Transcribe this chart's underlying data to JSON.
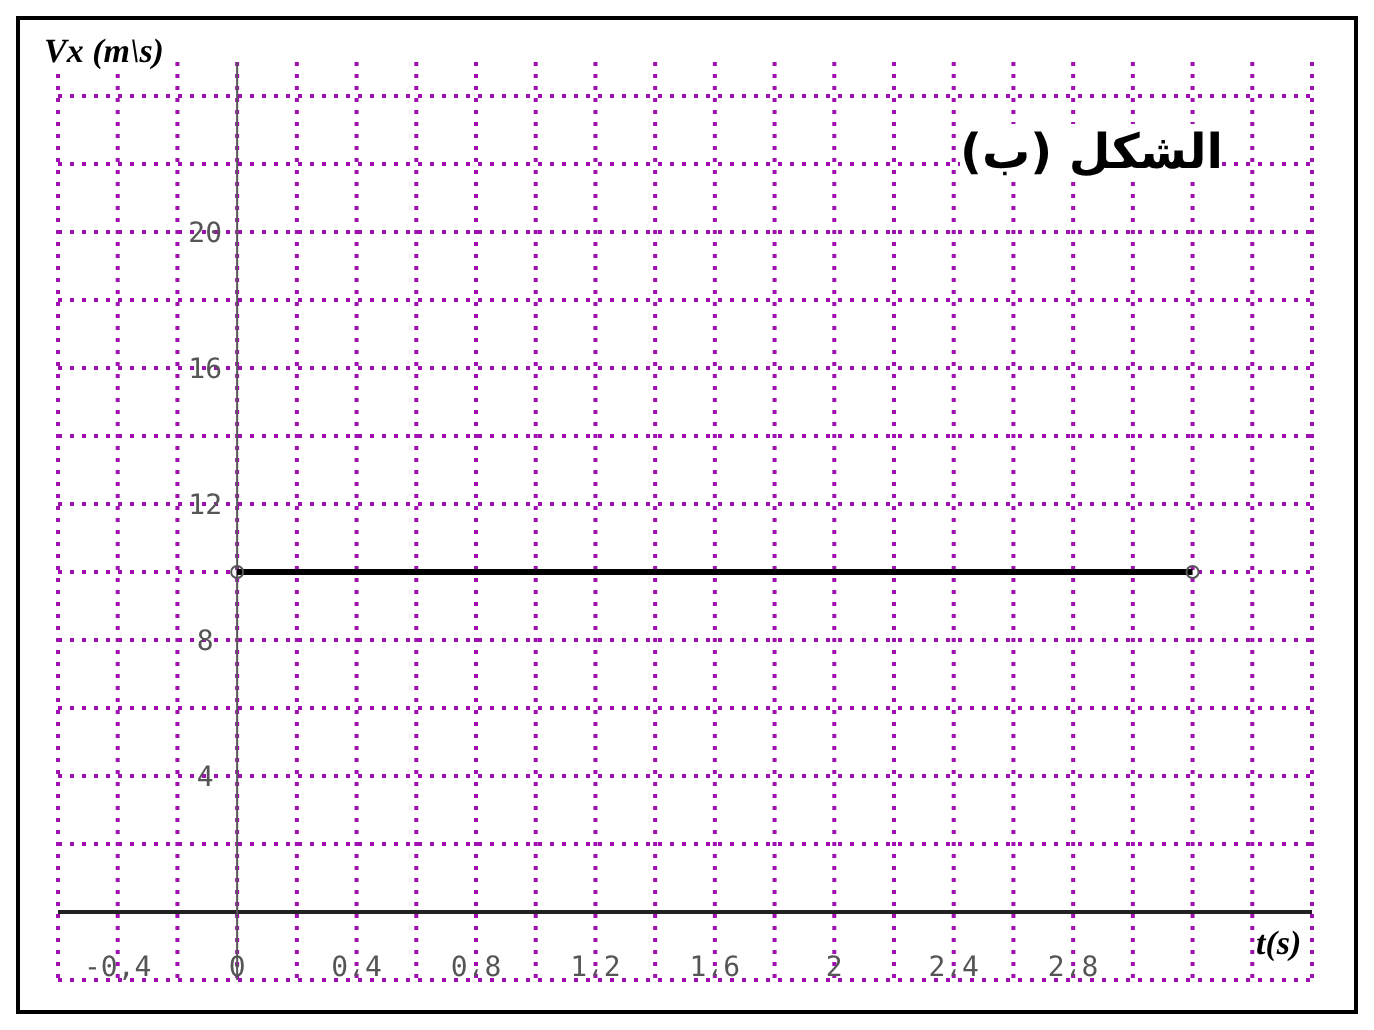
{
  "chart_data": {
    "type": "line",
    "title": "الشكل (ب)",
    "xlabel": "t(s)",
    "ylabel": "Vx (m\\s)",
    "x": [
      0,
      3.2
    ],
    "series": [
      {
        "color": "#000000",
        "values": [
          10,
          10
        ]
      }
    ],
    "marker": "circle",
    "line_style": "solid",
    "grid": true,
    "xlim": [
      -0.6,
      3.6
    ],
    "xticks": [
      {
        "value": -0.6,
        "label": null
      },
      {
        "value": -0.4,
        "label": "-0,4"
      },
      {
        "value": -0.2,
        "label": null
      },
      0,
      {
        "value": 0.2,
        "label": null
      },
      {
        "value": 0.4,
        "label": "0،4"
      },
      {
        "value": 0.6,
        "label": null
      },
      {
        "value": 0.8,
        "label": "0،8"
      },
      {
        "value": 1,
        "label": null
      },
      {
        "value": 1.2,
        "label": "1،2"
      },
      {
        "value": 1.4,
        "label": null
      },
      {
        "value": 1.6,
        "label": "1،6"
      },
      {
        "value": 1.8,
        "label": null
      },
      2,
      {
        "value": 2.2,
        "label": null
      },
      {
        "value": 2.4,
        "label": "2،4"
      },
      {
        "value": 2.6,
        "label": null
      },
      {
        "value": 2.8,
        "label": "2،8"
      },
      {
        "value": 3,
        "label": null
      },
      {
        "value": 3.2,
        "label": null
      },
      {
        "value": 3.4,
        "label": null
      },
      {
        "value": 3.6,
        "label": null
      }
    ],
    "ylim": [
      -2,
      25
    ],
    "yticks": [
      {
        "value": -2,
        "label": null
      },
      {
        "value": 0,
        "label": null
      },
      {
        "value": 2,
        "label": null
      },
      4,
      {
        "value": 6,
        "label": null
      },
      8,
      {
        "value": 10,
        "label": null
      },
      12,
      {
        "value": 14,
        "label": null
      },
      16,
      {
        "value": 18,
        "label": null
      },
      20,
      {
        "value": 22,
        "label": null
      },
      {
        "value": 24,
        "label": null
      }
    ]
  }
}
